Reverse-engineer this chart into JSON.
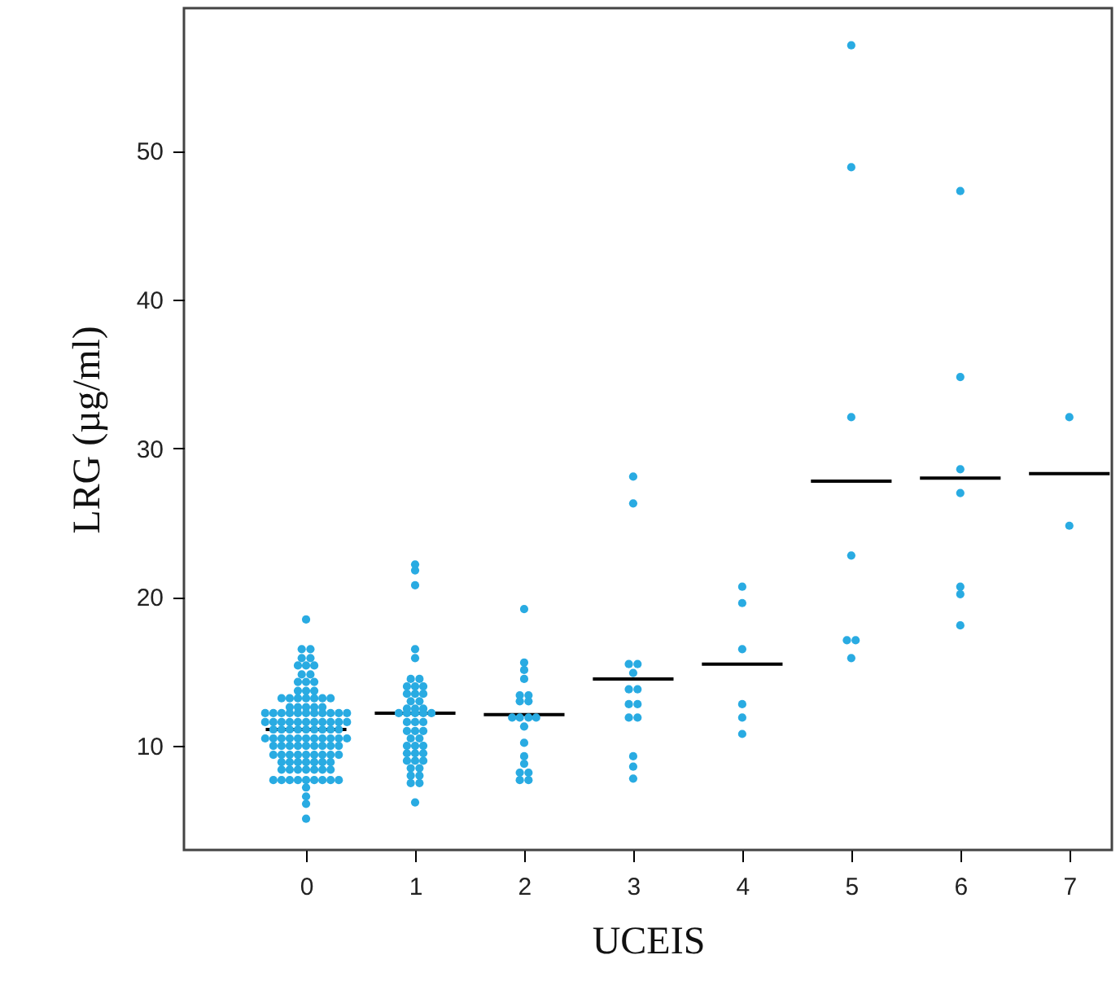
{
  "chart_data": {
    "type": "scatter",
    "xlabel": "UCEIS",
    "ylabel": "LRG (µg/ml)",
    "xlim": [
      -1.12,
      7.39
    ],
    "ylim": [
      3.0,
      59.6
    ],
    "xticks": [
      0,
      1,
      2,
      3,
      4,
      5,
      6,
      7
    ],
    "yticks": [
      10,
      20,
      30,
      40,
      50
    ],
    "series": [
      {
        "color": "#29abe2",
        "marker": "circle",
        "x": [
          0,
          -0.04,
          0.04,
          -0.04,
          0.04,
          -0.075,
          0,
          0.075,
          -0.04,
          0.04,
          -0.075,
          0,
          0.075,
          -0.075,
          0,
          0.075,
          -0.225,
          -0.15,
          -0.075,
          0,
          0.075,
          0.15,
          0.225,
          -0.15,
          -0.075,
          0,
          0.075,
          0.15,
          -0.375,
          -0.3,
          -0.225,
          -0.15,
          -0.075,
          0,
          0.075,
          0.15,
          0.225,
          0.3,
          0.375,
          -0.375,
          -0.3,
          -0.225,
          -0.15,
          -0.075,
          0,
          0.075,
          0.15,
          0.225,
          0.3,
          0.375,
          -0.3,
          -0.225,
          -0.15,
          -0.075,
          0,
          0.075,
          0.15,
          0.225,
          0.3,
          -0.375,
          -0.3,
          -0.225,
          -0.15,
          -0.075,
          0,
          0.075,
          0.15,
          0.225,
          0.3,
          0.375,
          -0.3,
          -0.225,
          -0.15,
          -0.075,
          0,
          0.075,
          0.15,
          0.225,
          0.3,
          -0.3,
          -0.225,
          -0.15,
          -0.075,
          0,
          0.075,
          0.15,
          0.225,
          0.3,
          -0.225,
          -0.15,
          -0.075,
          0,
          0.075,
          0.15,
          0.225,
          -0.225,
          -0.15,
          -0.075,
          0,
          0.075,
          0.15,
          0.225,
          -0.3,
          -0.225,
          -0.15,
          -0.075,
          0,
          0.075,
          0.15,
          0.225,
          0.3,
          0,
          0,
          0,
          0
        ],
        "values": [
          18.5,
          16.5,
          16.5,
          15.9,
          15.9,
          15.4,
          15.4,
          15.4,
          14.8,
          14.8,
          14.3,
          14.3,
          14.3,
          13.7,
          13.7,
          13.7,
          13.2,
          13.2,
          13.2,
          13.2,
          13.2,
          13.2,
          13.2,
          12.6,
          12.6,
          12.6,
          12.6,
          12.6,
          12.2,
          12.2,
          12.2,
          12.2,
          12.2,
          12.2,
          12.2,
          12.2,
          12.2,
          12.2,
          12.2,
          11.6,
          11.6,
          11.6,
          11.6,
          11.6,
          11.6,
          11.6,
          11.6,
          11.6,
          11.6,
          11.6,
          11.1,
          11.1,
          11.1,
          11.1,
          11.1,
          11.1,
          11.1,
          11.1,
          11.1,
          10.5,
          10.5,
          10.5,
          10.5,
          10.5,
          10.5,
          10.5,
          10.5,
          10.5,
          10.5,
          10.5,
          10.0,
          10.0,
          10.0,
          10.0,
          10.0,
          10.0,
          10.0,
          10.0,
          10.0,
          9.4,
          9.4,
          9.4,
          9.4,
          9.4,
          9.4,
          9.4,
          9.4,
          9.4,
          8.9,
          8.9,
          8.9,
          8.9,
          8.9,
          8.9,
          8.9,
          8.4,
          8.4,
          8.4,
          8.4,
          8.4,
          8.4,
          8.4,
          7.7,
          7.7,
          7.7,
          7.7,
          7.7,
          7.7,
          7.7,
          7.7,
          7.7,
          7.2,
          6.6,
          6.1,
          5.1
        ]
      },
      {
        "color": "#29abe2",
        "marker": "circle",
        "x": [
          1,
          1,
          1,
          1,
          1,
          0.96,
          1.04,
          0.925,
          1,
          1.075,
          0.925,
          1,
          1.075,
          0.96,
          1.04,
          0.925,
          1,
          1.075,
          0.85,
          0.925,
          1,
          1.075,
          1.15,
          0.925,
          1,
          1.075,
          0.925,
          1,
          1.075,
          0.96,
          1.04,
          0.925,
          1,
          1.075,
          0.925,
          1,
          1.075,
          0.925,
          1,
          1.075,
          0.96,
          1.04,
          0.96,
          1.04,
          0.96,
          1.04,
          1
        ],
        "values": [
          22.2,
          21.8,
          20.8,
          16.5,
          15.9,
          14.5,
          14.5,
          14.0,
          14.0,
          14.0,
          13.5,
          13.5,
          13.5,
          13.0,
          13.0,
          12.5,
          12.5,
          12.5,
          12.2,
          12.2,
          12.2,
          12.2,
          12.2,
          11.6,
          11.6,
          11.6,
          11.0,
          11.0,
          11.0,
          10.5,
          10.5,
          10.0,
          10.0,
          10.0,
          9.5,
          9.5,
          9.5,
          9.0,
          9.0,
          9.0,
          8.5,
          8.5,
          8.0,
          8.0,
          7.5,
          7.5,
          6.2
        ]
      },
      {
        "color": "#29abe2",
        "marker": "circle",
        "x": [
          2,
          2,
          2,
          2,
          1.96,
          2.04,
          1.96,
          2.04,
          1.89,
          1.96,
          2.04,
          2.11,
          2,
          2,
          2,
          2,
          1.96,
          2.04,
          1.96,
          2.04
        ],
        "values": [
          19.2,
          15.6,
          15.1,
          14.5,
          13.4,
          13.4,
          13.0,
          13.0,
          11.9,
          11.9,
          11.9,
          11.9,
          11.3,
          10.2,
          9.3,
          8.8,
          8.2,
          8.2,
          7.7,
          7.7
        ]
      },
      {
        "color": "#29abe2",
        "marker": "circle",
        "x": [
          3,
          3,
          2.96,
          3.04,
          3,
          2.96,
          3.04,
          2.96,
          3.04,
          2.96,
          3.04,
          3,
          3,
          3
        ],
        "values": [
          28.1,
          26.3,
          15.5,
          15.5,
          14.9,
          13.8,
          13.8,
          12.8,
          12.8,
          11.9,
          11.9,
          9.3,
          8.6,
          7.8
        ]
      },
      {
        "color": "#29abe2",
        "marker": "circle",
        "x": [
          4,
          4,
          4,
          4,
          4,
          4
        ],
        "values": [
          20.7,
          19.6,
          16.5,
          12.8,
          11.9,
          10.8
        ]
      },
      {
        "color": "#29abe2",
        "marker": "circle",
        "x": [
          5,
          5,
          5,
          5,
          4.96,
          5.04,
          5
        ],
        "values": [
          57.1,
          48.9,
          32.1,
          22.8,
          17.1,
          17.1,
          15.9
        ]
      },
      {
        "color": "#29abe2",
        "marker": "circle",
        "x": [
          6,
          6,
          6,
          6,
          6,
          6,
          6
        ],
        "values": [
          47.3,
          34.8,
          28.6,
          27.0,
          20.7,
          20.2,
          18.1
        ]
      },
      {
        "color": "#29abe2",
        "marker": "circle",
        "x": [
          7,
          7
        ],
        "values": [
          32.1,
          24.8
        ]
      },
      {
        "type": "line",
        "color": "#000000",
        "x": [
          -0.37,
          0.37
        ],
        "values": [
          11.1,
          11.1
        ]
      },
      {
        "type": "line",
        "color": "#000000",
        "x": [
          0.63,
          1.37
        ],
        "values": [
          12.2,
          12.2
        ]
      },
      {
        "type": "line",
        "color": "#000000",
        "x": [
          1.63,
          2.37
        ],
        "values": [
          12.1,
          12.1
        ]
      },
      {
        "type": "line",
        "color": "#000000",
        "x": [
          2.63,
          3.37
        ],
        "values": [
          14.5,
          14.5
        ]
      },
      {
        "type": "line",
        "color": "#000000",
        "x": [
          3.63,
          4.37
        ],
        "values": [
          15.5,
          15.5
        ]
      },
      {
        "type": "line",
        "color": "#000000",
        "x": [
          4.63,
          5.37
        ],
        "values": [
          27.8,
          27.8
        ]
      },
      {
        "type": "line",
        "color": "#000000",
        "x": [
          5.63,
          6.37
        ],
        "values": [
          28.0,
          28.0
        ]
      },
      {
        "type": "line",
        "color": "#000000",
        "x": [
          6.63,
          7.37
        ],
        "values": [
          28.3,
          28.3
        ]
      }
    ]
  }
}
